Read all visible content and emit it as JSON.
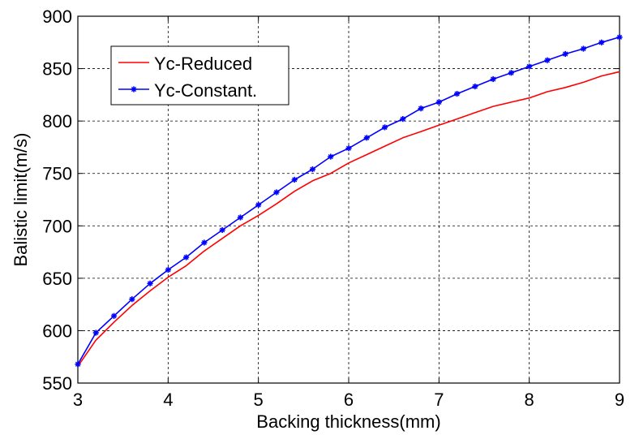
{
  "chart_data": {
    "type": "line",
    "title": "",
    "xlabel": "Backing thickness(mm)",
    "ylabel": "Balistic limit(m/s)",
    "xlim": [
      3,
      9
    ],
    "ylim": [
      550,
      900
    ],
    "xticks": [
      3,
      4,
      5,
      6,
      7,
      8,
      9
    ],
    "yticks": [
      550,
      600,
      650,
      700,
      750,
      800,
      850,
      900
    ],
    "grid": true,
    "legend_position": "top-left",
    "series": [
      {
        "name": "Yc-Reduced",
        "color": "#ff0000",
        "marker": "none",
        "x": [
          3.0,
          3.2,
          3.4,
          3.6,
          3.8,
          4.0,
          4.2,
          4.4,
          4.6,
          4.8,
          5.0,
          5.2,
          5.4,
          5.6,
          5.8,
          6.0,
          6.2,
          6.4,
          6.6,
          6.8,
          7.0,
          7.2,
          7.4,
          7.6,
          7.8,
          8.0,
          8.2,
          8.4,
          8.6,
          8.8,
          9.0
        ],
        "y": [
          566,
          591,
          608,
          624,
          638,
          651,
          662,
          676,
          688,
          700,
          710,
          721,
          733,
          743,
          750,
          760,
          768,
          776,
          784,
          790,
          796,
          802,
          808,
          814,
          818,
          822,
          828,
          832,
          837,
          843,
          847
        ]
      },
      {
        "name": "Yc-Constant.",
        "color": "#0000ff",
        "marker": "star",
        "x": [
          3.0,
          3.2,
          3.4,
          3.6,
          3.8,
          4.0,
          4.2,
          4.4,
          4.6,
          4.8,
          5.0,
          5.2,
          5.4,
          5.6,
          5.8,
          6.0,
          6.2,
          6.4,
          6.6,
          6.8,
          7.0,
          7.2,
          7.4,
          7.6,
          7.8,
          8.0,
          8.2,
          8.4,
          8.6,
          8.8,
          9.0
        ],
        "y": [
          568,
          598,
          614,
          630,
          645,
          658,
          670,
          684,
          696,
          708,
          720,
          732,
          744,
          754,
          766,
          774,
          784,
          794,
          802,
          812,
          818,
          826,
          833,
          840,
          846,
          852,
          858,
          864,
          869,
          875,
          880
        ]
      }
    ]
  }
}
